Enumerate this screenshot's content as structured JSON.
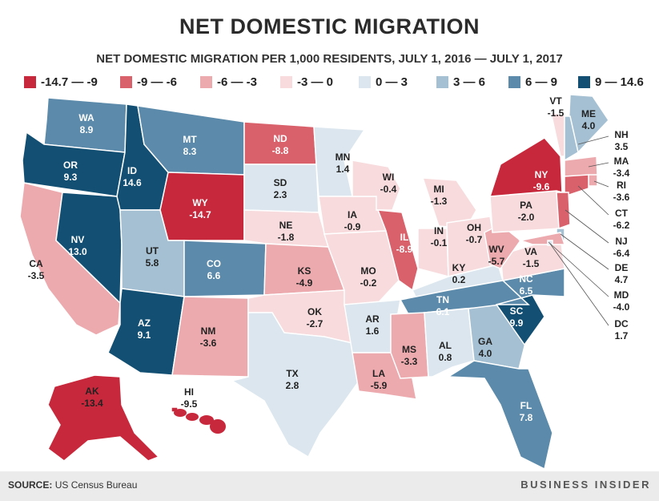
{
  "title": "NET DOMESTIC MIGRATION",
  "subtitle": "NET DOMESTIC MIGRATION PER 1,000 RESIDENTS, JULY 1, 2016 — JULY 1, 2017",
  "legend": [
    {
      "label": "-14.7 — -9",
      "color": "#c8283b"
    },
    {
      "label": "-9 — -6",
      "color": "#d9616c"
    },
    {
      "label": "-6 — -3",
      "color": "#ecaaae"
    },
    {
      "label": "-3 — 0",
      "color": "#f7dbdd"
    },
    {
      "label": "0 — 3",
      "color": "#dbe6ee"
    },
    {
      "label": "3 — 6",
      "color": "#a4c0d2"
    },
    {
      "label": "6 — 9",
      "color": "#5b8aaa"
    },
    {
      "label": "9 — 14.6",
      "color": "#124f73"
    }
  ],
  "states": [
    {
      "abbr": "WA",
      "value": "8.9"
    },
    {
      "abbr": "OR",
      "value": "9.3"
    },
    {
      "abbr": "CA",
      "value": "-3.5"
    },
    {
      "abbr": "ID",
      "value": "14.6"
    },
    {
      "abbr": "NV",
      "value": "13.0"
    },
    {
      "abbr": "MT",
      "value": "8.3"
    },
    {
      "abbr": "WY",
      "value": "-14.7"
    },
    {
      "abbr": "UT",
      "value": "5.8"
    },
    {
      "abbr": "AZ",
      "value": "9.1"
    },
    {
      "abbr": "CO",
      "value": "6.6"
    },
    {
      "abbr": "NM",
      "value": "-3.6"
    },
    {
      "abbr": "ND",
      "value": "-8.8"
    },
    {
      "abbr": "SD",
      "value": "2.3"
    },
    {
      "abbr": "NE",
      "value": "-1.8"
    },
    {
      "abbr": "KS",
      "value": "-4.9"
    },
    {
      "abbr": "OK",
      "value": "-2.7"
    },
    {
      "abbr": "TX",
      "value": "2.8"
    },
    {
      "abbr": "MN",
      "value": "1.4"
    },
    {
      "abbr": "IA",
      "value": "-0.9"
    },
    {
      "abbr": "MO",
      "value": "-0.2"
    },
    {
      "abbr": "AR",
      "value": "1.6"
    },
    {
      "abbr": "LA",
      "value": "-5.9"
    },
    {
      "abbr": "WI",
      "value": "-0.4"
    },
    {
      "abbr": "IL",
      "value": "-8.9"
    },
    {
      "abbr": "MI",
      "value": "-1.3"
    },
    {
      "abbr": "IN",
      "value": "-0.1"
    },
    {
      "abbr": "OH",
      "value": "-0.7"
    },
    {
      "abbr": "KY",
      "value": "0.2"
    },
    {
      "abbr": "TN",
      "value": "6.1"
    },
    {
      "abbr": "MS",
      "value": "-3.3"
    },
    {
      "abbr": "AL",
      "value": "0.8"
    },
    {
      "abbr": "GA",
      "value": "4.0"
    },
    {
      "abbr": "FL",
      "value": "7.8"
    },
    {
      "abbr": "SC",
      "value": "9.9"
    },
    {
      "abbr": "NC",
      "value": "6.5"
    },
    {
      "abbr": "VA",
      "value": "-1.5"
    },
    {
      "abbr": "WV",
      "value": "-5.7"
    },
    {
      "abbr": "PA",
      "value": "-2.0"
    },
    {
      "abbr": "NY",
      "value": "-9.6"
    },
    {
      "abbr": "VT",
      "value": "-1.5"
    },
    {
      "abbr": "ME",
      "value": "4.0"
    },
    {
      "abbr": "NH",
      "value": "3.5"
    },
    {
      "abbr": "MA",
      "value": "-3.4"
    },
    {
      "abbr": "RI",
      "value": "-3.6"
    },
    {
      "abbr": "CT",
      "value": "-6.2"
    },
    {
      "abbr": "NJ",
      "value": "-6.4"
    },
    {
      "abbr": "DE",
      "value": "4.7"
    },
    {
      "abbr": "MD",
      "value": "-4.0"
    },
    {
      "abbr": "DC",
      "value": "1.7"
    },
    {
      "abbr": "AK",
      "value": "-13.4"
    },
    {
      "abbr": "HI",
      "value": "-9.5"
    }
  ],
  "footer": {
    "source_label": "SOURCE:",
    "source_text": "US Census Bureau",
    "brand": "BUSINESS INSIDER"
  }
}
